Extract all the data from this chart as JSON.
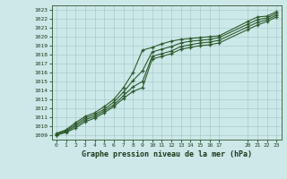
{
  "title": "Graphe pression niveau de la mer (hPa)",
  "background_color": "#cce8e8",
  "grid_color": "#aacccc",
  "line_color": "#2d5a2d",
  "xlim": [
    -0.5,
    23.5
  ],
  "ylim": [
    1008.5,
    1023.5
  ],
  "xticks": [
    0,
    1,
    2,
    3,
    4,
    5,
    6,
    7,
    8,
    9,
    10,
    11,
    12,
    13,
    14,
    15,
    16,
    17,
    20,
    21,
    22,
    23
  ],
  "yticks": [
    1009,
    1010,
    1011,
    1012,
    1013,
    1014,
    1015,
    1016,
    1017,
    1018,
    1019,
    1020,
    1021,
    1022,
    1023
  ],
  "series": [
    {
      "x": [
        0,
        1,
        2,
        3,
        4,
        5,
        6,
        7,
        8,
        9,
        10,
        11,
        12,
        13,
        14,
        15,
        16,
        17,
        20,
        21,
        22,
        23
      ],
      "y": [
        1009.2,
        1009.6,
        1010.4,
        1011.1,
        1011.5,
        1012.2,
        1013.0,
        1014.3,
        1016.0,
        1018.5,
        1018.8,
        1019.2,
        1019.5,
        1019.7,
        1019.8,
        1019.9,
        1020.0,
        1020.1,
        1021.7,
        1022.2,
        1022.3,
        1022.8
      ]
    },
    {
      "x": [
        0,
        1,
        2,
        3,
        4,
        5,
        6,
        7,
        8,
        9,
        10,
        11,
        12,
        13,
        14,
        15,
        16,
        17,
        20,
        21,
        22,
        23
      ],
      "y": [
        1009.1,
        1009.5,
        1010.2,
        1010.9,
        1011.3,
        1011.9,
        1012.7,
        1013.8,
        1015.1,
        1016.2,
        1018.3,
        1018.6,
        1018.9,
        1019.3,
        1019.5,
        1019.6,
        1019.7,
        1019.9,
        1021.4,
        1021.9,
        1022.1,
        1022.6
      ]
    },
    {
      "x": [
        0,
        1,
        2,
        3,
        4,
        5,
        6,
        7,
        8,
        9,
        10,
        11,
        12,
        13,
        14,
        15,
        16,
        17,
        20,
        21,
        22,
        23
      ],
      "y": [
        1009.05,
        1009.4,
        1010.0,
        1010.7,
        1011.1,
        1011.7,
        1012.4,
        1013.4,
        1014.4,
        1015.0,
        1017.8,
        1018.1,
        1018.4,
        1018.9,
        1019.1,
        1019.3,
        1019.4,
        1019.6,
        1021.1,
        1021.6,
        1021.9,
        1022.4
      ]
    },
    {
      "x": [
        0,
        1,
        2,
        3,
        4,
        5,
        6,
        7,
        8,
        9,
        10,
        11,
        12,
        13,
        14,
        15,
        16,
        17,
        20,
        21,
        22,
        23
      ],
      "y": [
        1009.0,
        1009.3,
        1009.8,
        1010.5,
        1010.9,
        1011.5,
        1012.2,
        1013.1,
        1013.9,
        1014.3,
        1017.5,
        1017.8,
        1018.1,
        1018.6,
        1018.8,
        1019.0,
        1019.1,
        1019.3,
        1020.8,
        1021.3,
        1021.7,
        1022.2
      ]
    }
  ]
}
